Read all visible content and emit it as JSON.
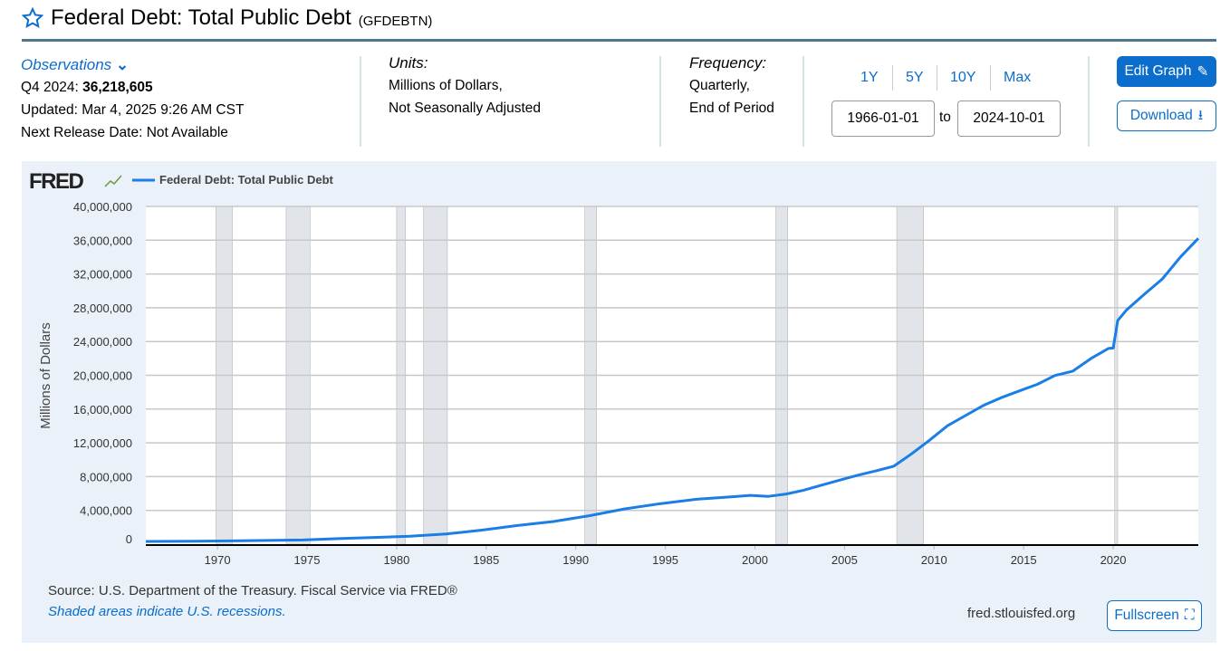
{
  "header": {
    "title": "Federal Debt: Total Public Debt",
    "series_id": "(GFDEBTN)",
    "star_icon": "star-icon"
  },
  "observations": {
    "label": "Observations",
    "period": "Q4 2024:",
    "value": "36,218,605",
    "updated": "Updated: Mar 4, 2025 9:26 AM CST",
    "next_release": "Next Release Date: Not Available"
  },
  "units": {
    "label": "Units:",
    "line1": "Millions of Dollars,",
    "line2": "Not Seasonally Adjusted"
  },
  "frequency": {
    "label": "Frequency:",
    "line1": "Quarterly,",
    "line2": "End of Period"
  },
  "range": {
    "buttons": [
      "1Y",
      "5Y",
      "10Y",
      "Max"
    ],
    "start": "1966-01-01",
    "to": "to",
    "end": "2024-10-01"
  },
  "actions": {
    "edit": "Edit Graph",
    "download": "Download",
    "fullscreen": "Fullscreen"
  },
  "footer": {
    "source": "Source: U.S. Department of the Treasury. Fiscal Service via FRED®",
    "shaded": "Shaded areas indicate U.S. recessions.",
    "site": "fred.stlouisfed.org"
  },
  "colors": {
    "accent": "#0b6dcc",
    "series": "#1a7ee6",
    "recession": "#e1e5ea"
  },
  "chart_data": {
    "type": "line",
    "logo": "FRED",
    "ylabel": "Millions of Dollars",
    "xlabel": "",
    "ylim": [
      0,
      40000000
    ],
    "xlim": [
      "1966-01-01",
      "2024-10-01"
    ],
    "grid": true,
    "legend": "top-left",
    "yticks": [
      "0",
      "4,000,000",
      "8,000,000",
      "12,000,000",
      "16,000,000",
      "20,000,000",
      "24,000,000",
      "28,000,000",
      "32,000,000",
      "36,000,000",
      "40,000,000"
    ],
    "xticks": [
      "1970",
      "1975",
      "1980",
      "1985",
      "1990",
      "1995",
      "2000",
      "2005",
      "2010",
      "2015",
      "2020"
    ],
    "recessions": [
      [
        "1969-12-01",
        "1970-11-01"
      ],
      [
        "1973-11-01",
        "1975-03-01"
      ],
      [
        "1980-01-01",
        "1980-07-01"
      ],
      [
        "1981-07-01",
        "1982-11-01"
      ],
      [
        "1990-07-01",
        "1991-03-01"
      ],
      [
        "2001-03-01",
        "2001-11-01"
      ],
      [
        "2007-12-01",
        "2009-06-01"
      ],
      [
        "2020-02-01",
        "2020-04-01"
      ]
    ],
    "series": [
      {
        "name": "Federal Debt: Total Public Debt",
        "points": [
          [
            "1966-01-01",
            320000
          ],
          [
            "1968-10-01",
            358000
          ],
          [
            "1970-10-01",
            389000
          ],
          [
            "1972-10-01",
            436000
          ],
          [
            "1974-10-01",
            492000
          ],
          [
            "1976-10-01",
            654000
          ],
          [
            "1978-10-01",
            789000
          ],
          [
            "1980-10-01",
            930000
          ],
          [
            "1982-10-01",
            1197000
          ],
          [
            "1984-10-01",
            1663000
          ],
          [
            "1986-10-01",
            2214000
          ],
          [
            "1988-10-01",
            2684000
          ],
          [
            "1990-10-01",
            3364000
          ],
          [
            "1992-10-01",
            4177000
          ],
          [
            "1994-10-01",
            4801000
          ],
          [
            "1996-10-01",
            5323000
          ],
          [
            "1998-10-01",
            5614000
          ],
          [
            "1999-10-01",
            5776000
          ],
          [
            "2000-10-01",
            5662000
          ],
          [
            "2001-10-01",
            5943000
          ],
          [
            "2002-10-01",
            6405000
          ],
          [
            "2003-10-01",
            6998000
          ],
          [
            "2004-10-01",
            7596000
          ],
          [
            "2005-10-01",
            8170000
          ],
          [
            "2006-10-01",
            8680000
          ],
          [
            "2007-10-01",
            9229000
          ],
          [
            "2008-10-01",
            10700000
          ],
          [
            "2009-10-01",
            12311000
          ],
          [
            "2010-10-01",
            14025000
          ],
          [
            "2011-10-01",
            15223000
          ],
          [
            "2012-10-01",
            16433000
          ],
          [
            "2013-10-01",
            17352000
          ],
          [
            "2014-10-01",
            18141000
          ],
          [
            "2015-10-01",
            18922000
          ],
          [
            "2016-10-01",
            19977000
          ],
          [
            "2017-10-01",
            20493000
          ],
          [
            "2018-10-01",
            21974000
          ],
          [
            "2019-10-01",
            23201000
          ],
          [
            "2020-01-01",
            23224000
          ],
          [
            "2020-04-01",
            26477000
          ],
          [
            "2020-10-01",
            27748000
          ],
          [
            "2021-10-01",
            29617000
          ],
          [
            "2022-10-01",
            31420000
          ],
          [
            "2023-10-01",
            34001000
          ],
          [
            "2024-10-01",
            36218605
          ]
        ]
      }
    ]
  }
}
